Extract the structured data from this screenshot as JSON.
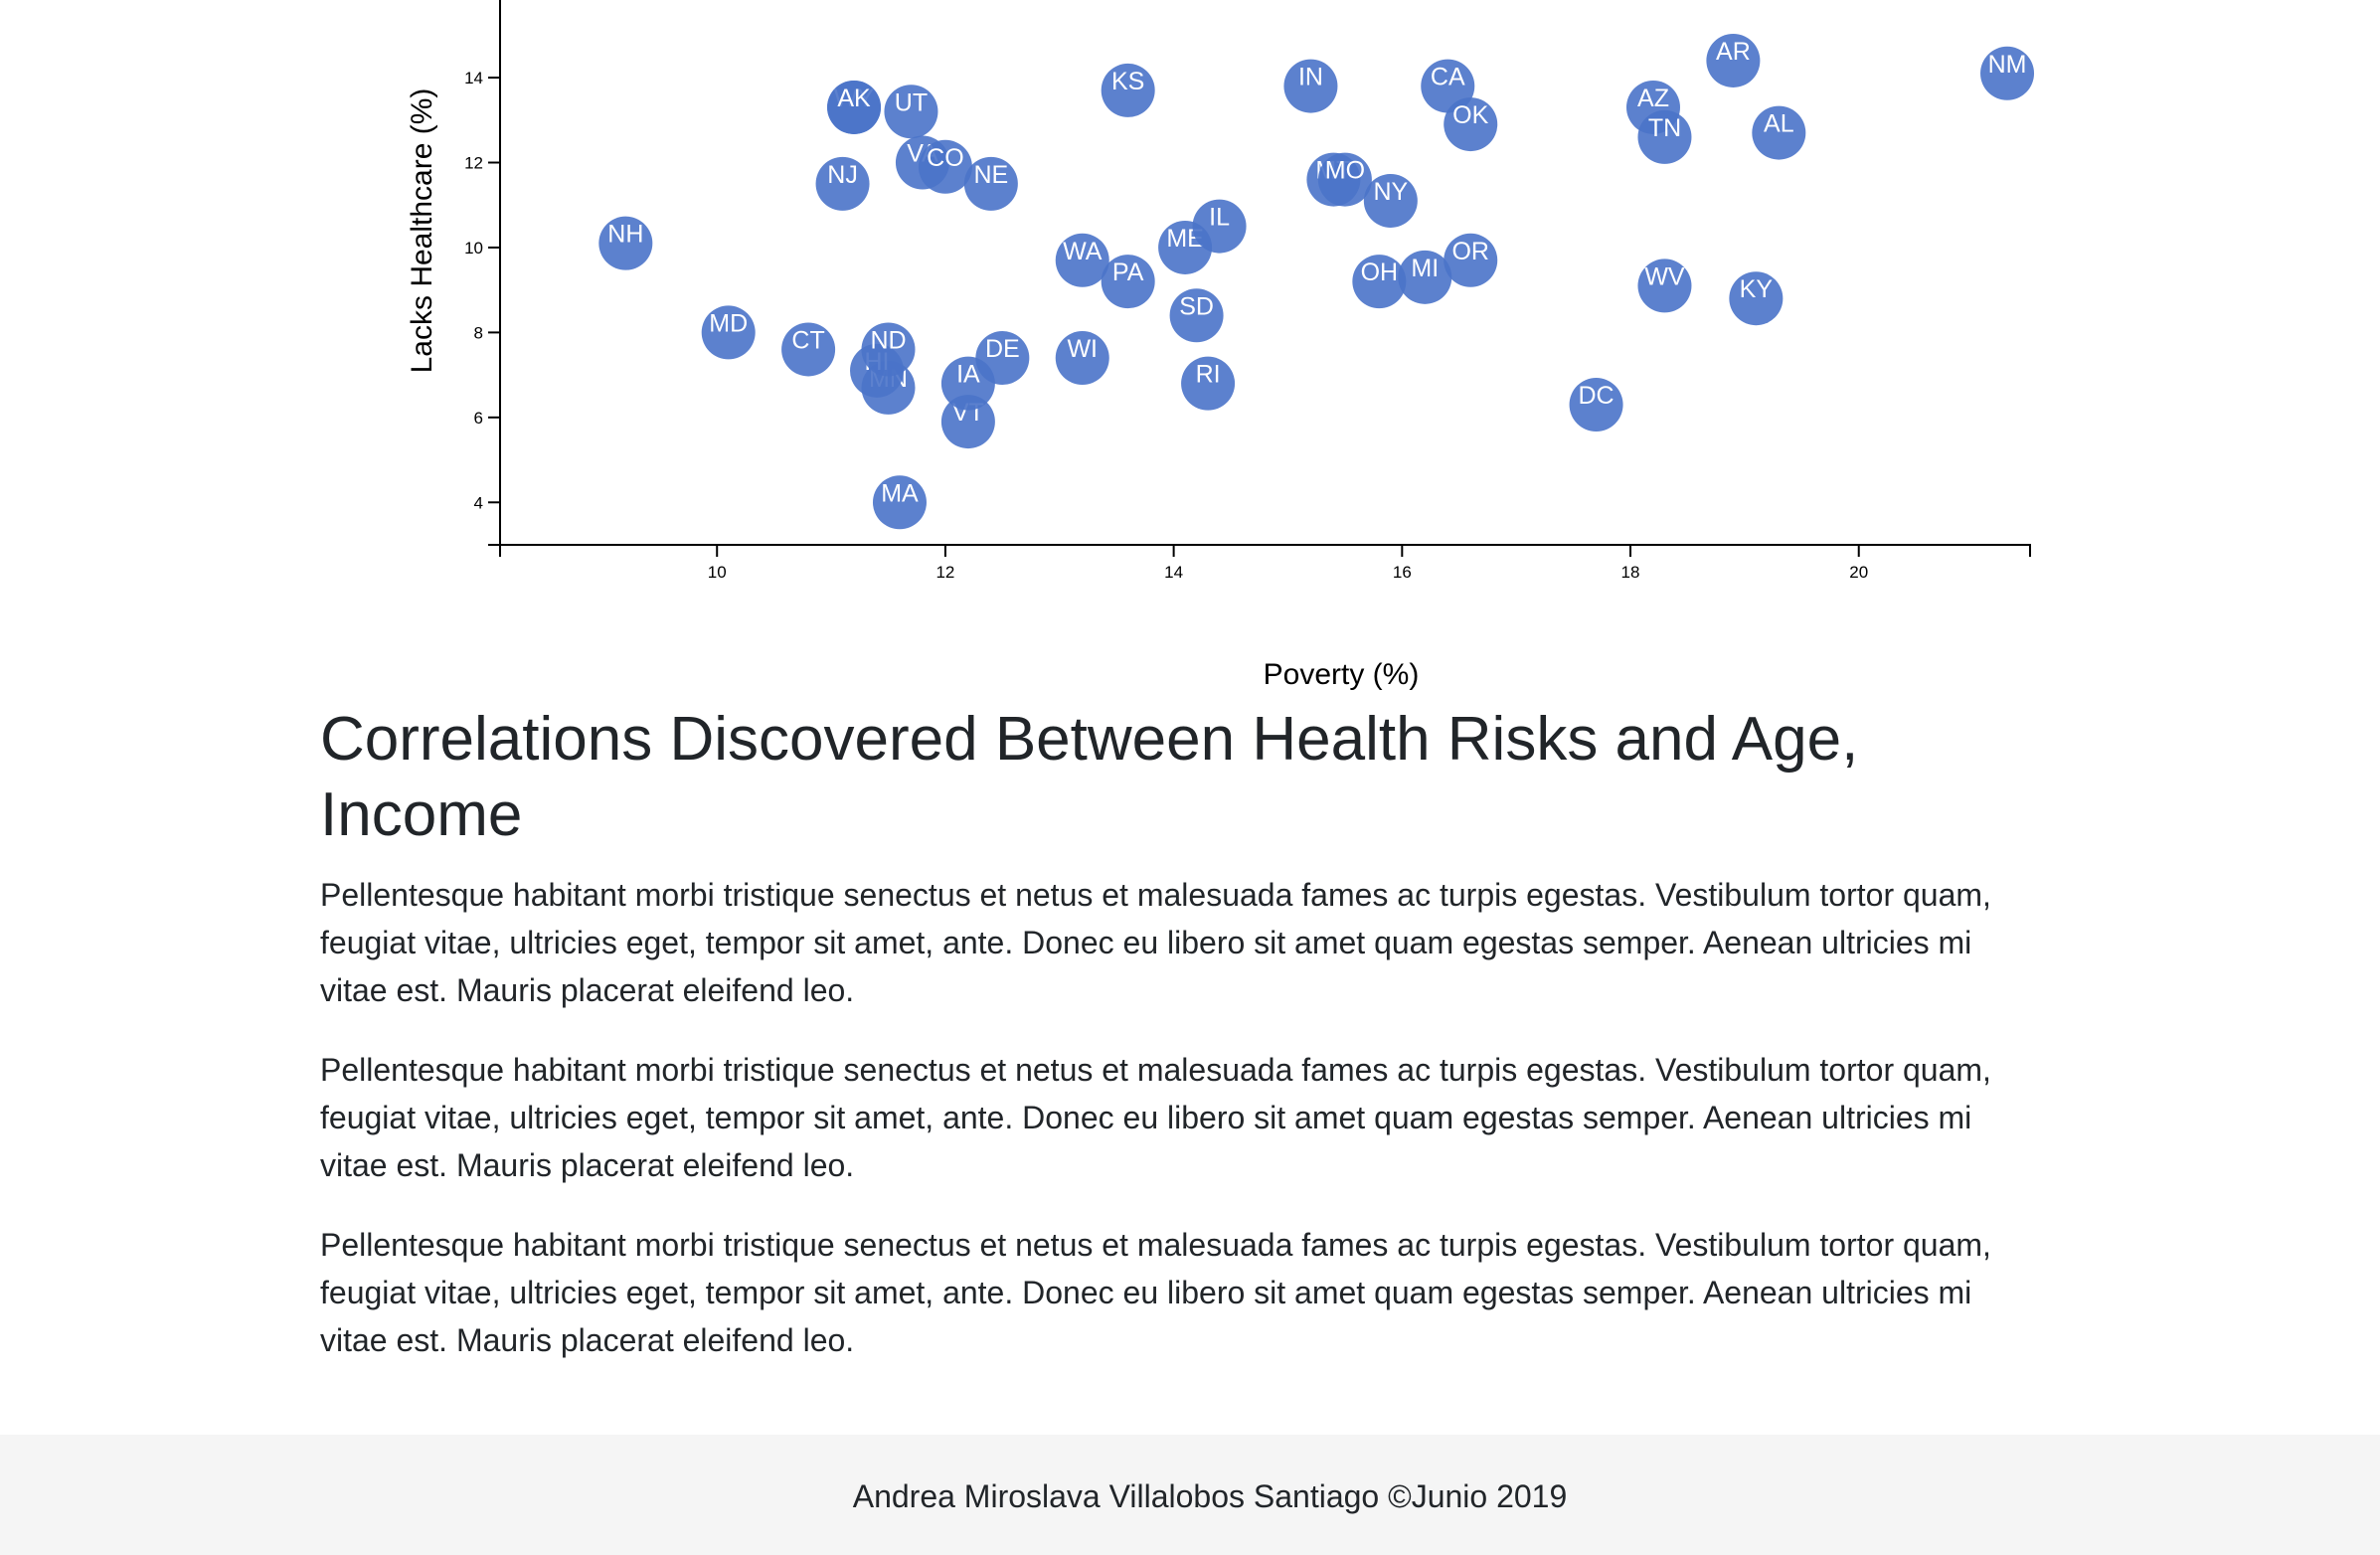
{
  "chart_data": {
    "type": "scatter",
    "xlabel": "Poverty (%)",
    "ylabel": "Lacks Healthcare (%)",
    "xlim": [
      8.1,
      21.5
    ],
    "ylim": [
      3.0,
      16.6
    ],
    "x_ticks": [
      10,
      12,
      14,
      16,
      18,
      20
    ],
    "y_ticks": [
      4,
      6,
      8,
      10,
      12,
      14
    ],
    "grid": false,
    "point_color": "#4a73c9",
    "label_color": "#ffffff",
    "points": [
      {
        "label": "MA",
        "x": 11.6,
        "y": 4.0
      },
      {
        "label": "VT",
        "x": 12.2,
        "y": 5.9
      },
      {
        "label": "RI",
        "x": 14.3,
        "y": 6.8
      },
      {
        "label": "IA",
        "x": 12.2,
        "y": 6.8
      },
      {
        "label": "MN",
        "x": 11.5,
        "y": 6.7
      },
      {
        "label": "HI",
        "x": 11.4,
        "y": 7.1
      },
      {
        "label": "ND",
        "x": 11.5,
        "y": 7.6
      },
      {
        "label": "DE",
        "x": 12.5,
        "y": 7.4
      },
      {
        "label": "WI",
        "x": 13.2,
        "y": 7.4
      },
      {
        "label": "CT",
        "x": 10.8,
        "y": 7.6
      },
      {
        "label": "MD",
        "x": 10.1,
        "y": 8.0
      },
      {
        "label": "SD",
        "x": 14.2,
        "y": 8.4
      },
      {
        "label": "NH",
        "x": 9.2,
        "y": 10.1
      },
      {
        "label": "PA",
        "x": 13.6,
        "y": 9.2
      },
      {
        "label": "WA",
        "x": 13.2,
        "y": 9.7
      },
      {
        "label": "ME",
        "x": 14.1,
        "y": 10.0
      },
      {
        "label": "IL",
        "x": 14.4,
        "y": 10.5
      },
      {
        "label": "OH",
        "x": 15.8,
        "y": 9.2
      },
      {
        "label": "MI",
        "x": 16.2,
        "y": 9.3
      },
      {
        "label": "OR",
        "x": 16.6,
        "y": 9.7
      },
      {
        "label": "WV",
        "x": 18.3,
        "y": 9.1
      },
      {
        "label": "KY",
        "x": 19.1,
        "y": 8.8
      },
      {
        "label": "DC",
        "x": 17.7,
        "y": 6.3
      },
      {
        "label": "NJ",
        "x": 11.1,
        "y": 11.5
      },
      {
        "label": "VA",
        "x": 11.8,
        "y": 12.0
      },
      {
        "label": "CO",
        "x": 12.0,
        "y": 11.9
      },
      {
        "label": "NE",
        "x": 12.4,
        "y": 11.5
      },
      {
        "label": "NY",
        "x": 15.9,
        "y": 11.1
      },
      {
        "label": "MT",
        "x": 15.4,
        "y": 11.6
      },
      {
        "label": "MO",
        "x": 15.5,
        "y": 11.6
      },
      {
        "label": "UT",
        "x": 11.7,
        "y": 13.2
      },
      {
        "label": "WY",
        "x": 11.2,
        "y": 13.3
      },
      {
        "label": "AK",
        "x": 11.2,
        "y": 13.3
      },
      {
        "label": "KS",
        "x": 13.6,
        "y": 13.7
      },
      {
        "label": "IN",
        "x": 15.2,
        "y": 13.8
      },
      {
        "label": "CA",
        "x": 16.4,
        "y": 13.8
      },
      {
        "label": "OK",
        "x": 16.6,
        "y": 12.9
      },
      {
        "label": "AZ",
        "x": 18.2,
        "y": 13.3
      },
      {
        "label": "TN",
        "x": 18.3,
        "y": 12.6
      },
      {
        "label": "AL",
        "x": 19.3,
        "y": 12.7
      },
      {
        "label": "AR",
        "x": 18.9,
        "y": 14.4
      },
      {
        "label": "NM",
        "x": 21.3,
        "y": 14.1
      }
    ]
  },
  "article": {
    "title": "Correlations Discovered Between Health Risks and Age, Income",
    "paragraphs": [
      "Pellentesque habitant morbi tristique senectus et netus et malesuada fames ac turpis egestas. Vestibulum tortor quam, feugiat vitae, ultricies eget, tempor sit amet, ante. Donec eu libero sit amet quam egestas semper. Aenean ultricies mi vitae est. Mauris placerat eleifend leo.",
      "Pellentesque habitant morbi tristique senectus et netus et malesuada fames ac turpis egestas. Vestibulum tortor quam, feugiat vitae, ultricies eget, tempor sit amet, ante. Donec eu libero sit amet quam egestas semper. Aenean ultricies mi vitae est. Mauris placerat eleifend leo.",
      "Pellentesque habitant morbi tristique senectus et netus et malesuada fames ac turpis egestas. Vestibulum tortor quam, feugiat vitae, ultricies eget, tempor sit amet, ante. Donec eu libero sit amet quam egestas semper. Aenean ultricies mi vitae est. Mauris placerat eleifend leo."
    ]
  },
  "footer": {
    "text": "Andrea Miroslava Villalobos Santiago ©Junio 2019"
  }
}
